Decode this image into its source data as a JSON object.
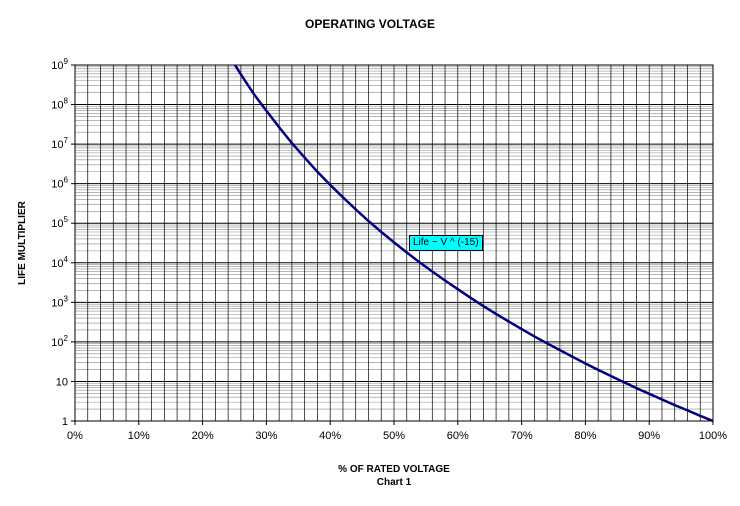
{
  "chart_data": {
    "type": "line",
    "title": "OPERATING VOLTAGE",
    "xlabel": "% OF RATED VOLTAGE",
    "xlabel_sub": "Chart 1",
    "ylabel": "LIFE MULTIPLIER",
    "x_ticks": [
      "0%",
      "10%",
      "20%",
      "30%",
      "40%",
      "50%",
      "60%",
      "70%",
      "80%",
      "90%",
      "100%"
    ],
    "y_ticks": [
      {
        "base": "1",
        "exp": ""
      },
      {
        "base": "10",
        "exp": ""
      },
      {
        "base": "10",
        "exp": "2"
      },
      {
        "base": "10",
        "exp": "3"
      },
      {
        "base": "10",
        "exp": "4"
      },
      {
        "base": "10",
        "exp": "5"
      },
      {
        "base": "10",
        "exp": "6"
      },
      {
        "base": "10",
        "exp": "7"
      },
      {
        "base": "10",
        "exp": "8"
      },
      {
        "base": "10",
        "exp": "9"
      }
    ],
    "xlim": [
      0,
      100
    ],
    "ylim": [
      1,
      1000000000
    ],
    "y_scale": "log",
    "grid": true,
    "line_color": "#000080",
    "annotation_color": "#00ffff",
    "series": [
      {
        "name": "Life ~ V ^ (-15)",
        "exponent": -15,
        "x": [
          25.1,
          26,
          28,
          30,
          32,
          34,
          36,
          38,
          40,
          42,
          44,
          46,
          48,
          50,
          52,
          54,
          56,
          58,
          60,
          62,
          64,
          66,
          68,
          70,
          72,
          74,
          76,
          78,
          80,
          82,
          84,
          86,
          88,
          90,
          92,
          94,
          96,
          98,
          100
        ],
        "y": [
          1000000000,
          574000000,
          188000000,
          69700000,
          26600000,
          10600000,
          4540000,
          1990000,
          931000,
          450000,
          223000,
          114000,
          60500,
          32800,
          18200,
          10300,
          6030,
          3570,
          2150,
          1300,
          805,
          509,
          326,
          211,
          138,
          92,
          62,
          42,
          28.4,
          19.6,
          13.7,
          9.6,
          6.8,
          4.87,
          3.49,
          2.53,
          1.85,
          1.35,
          1
        ]
      }
    ]
  }
}
